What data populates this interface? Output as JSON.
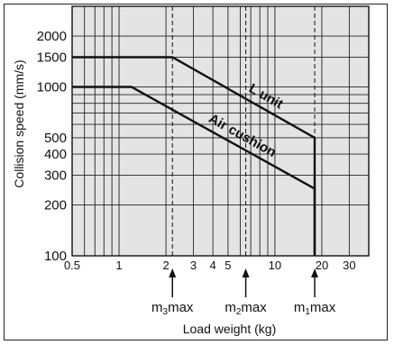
{
  "chart_data": {
    "type": "line",
    "xscale": "log",
    "yscale": "log",
    "xlim": [
      0.5,
      40
    ],
    "ylim": [
      100,
      3000
    ],
    "xlabel": "Load weight (kg)",
    "ylabel": "Collision speed (mm/s)",
    "xticks": [
      {
        "value": 0.5,
        "label": "0.5"
      },
      {
        "value": 1,
        "label": "1"
      },
      {
        "value": 2,
        "label": "2"
      },
      {
        "value": 3,
        "label": "3"
      },
      {
        "value": 4,
        "label": "4"
      },
      {
        "value": 5,
        "label": "5"
      },
      {
        "value": 10,
        "label": "10"
      },
      {
        "value": 20,
        "label": "20"
      },
      {
        "value": 30,
        "label": "30"
      }
    ],
    "yticks": [
      {
        "value": 100,
        "label": "100"
      },
      {
        "value": 200,
        "label": "200"
      },
      {
        "value": 300,
        "label": "300"
      },
      {
        "value": 400,
        "label": "400"
      },
      {
        "value": 500,
        "label": "500"
      },
      {
        "value": 1000,
        "label": "1000"
      },
      {
        "value": 1500,
        "label": "1500"
      },
      {
        "value": 2000,
        "label": "2000"
      }
    ],
    "series": [
      {
        "name": "L unit",
        "x": [
          0.5,
          2.2,
          18,
          18
        ],
        "y": [
          1500,
          1500,
          500,
          100
        ]
      },
      {
        "name": "Air cushion",
        "x": [
          0.5,
          1.2,
          18,
          18
        ],
        "y": [
          1000,
          1000,
          250,
          100
        ]
      }
    ],
    "markers": [
      {
        "x": 2.2,
        "prefix": "m",
        "sub": "3",
        "suffix": "max"
      },
      {
        "x": 6.5,
        "prefix": "m",
        "sub": "2",
        "suffix": "max"
      },
      {
        "x": 18,
        "prefix": "m",
        "sub": "1",
        "suffix": "max"
      }
    ],
    "grid": true,
    "colors": {
      "background": "#e4e4e4",
      "line": "#111111",
      "grid": "#222222"
    }
  }
}
